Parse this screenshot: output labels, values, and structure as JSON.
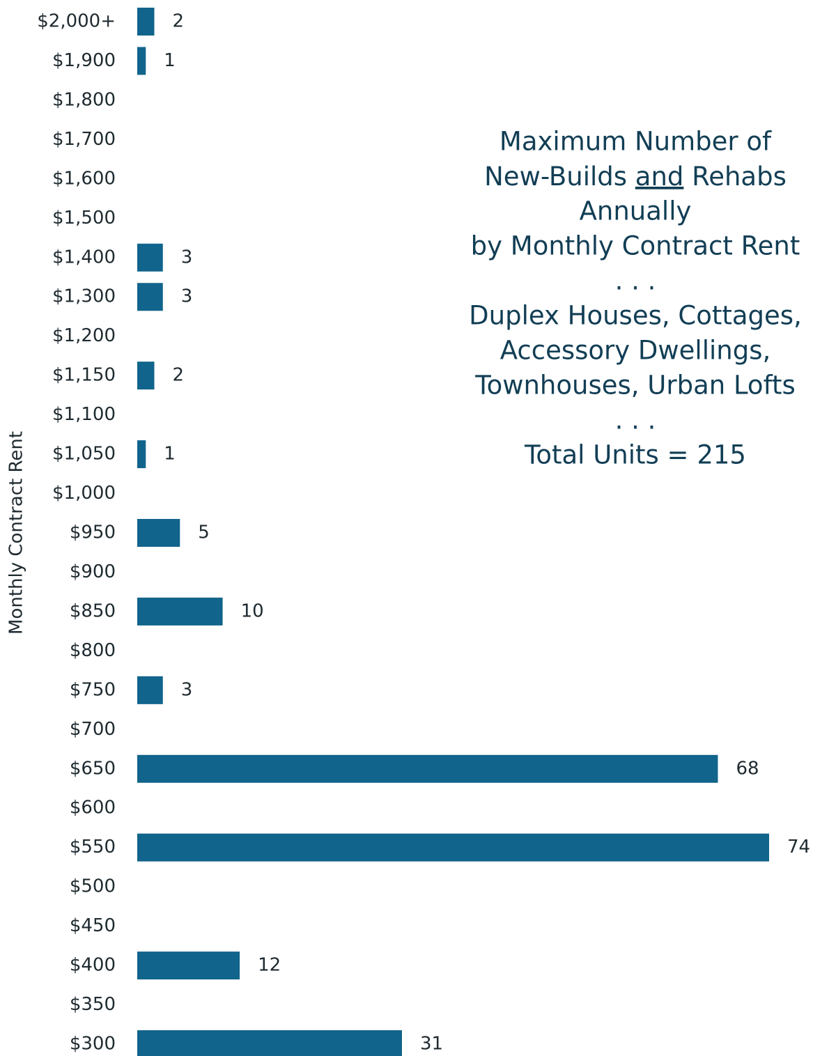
{
  "chart_data": {
    "type": "barh",
    "y_label": "Monthly Contract Rent",
    "title_lines": [
      "Maximum Number of",
      [
        "New-Builds ",
        "and",
        " Rehabs"
      ],
      "Annually",
      "by Monthly Contract Rent",
      ". . .",
      "Duplex Houses, Cottages,",
      "Accessory Dwellings,",
      "Townhouses, Urban Lofts",
      ". . .",
      "Total Units = 215"
    ],
    "categories": [
      "$2,000+",
      "$1,900",
      "$1,800",
      "$1,700",
      "$1,600",
      "$1,500",
      "$1,400",
      "$1,300",
      "$1,200",
      "$1,150",
      "$1,100",
      "$1,050",
      "$1,000",
      "$950",
      "$900",
      "$850",
      "$800",
      "$750",
      "$700",
      "$650",
      "$600",
      "$550",
      "$500",
      "$450",
      "$400",
      "$350",
      "$300"
    ],
    "values": [
      2,
      1,
      null,
      null,
      null,
      null,
      3,
      3,
      null,
      2,
      null,
      1,
      null,
      5,
      null,
      10,
      null,
      3,
      null,
      68,
      null,
      74,
      null,
      null,
      12,
      null,
      31
    ],
    "color": "#11648b",
    "xlim": [
      0,
      74
    ]
  }
}
